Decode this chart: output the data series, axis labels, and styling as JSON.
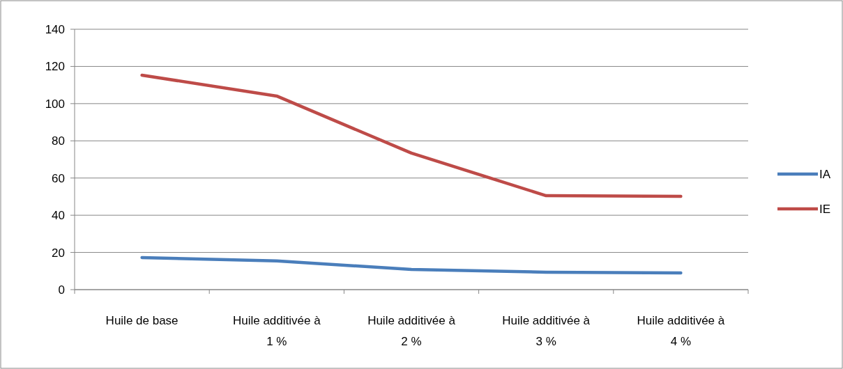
{
  "chart_data": {
    "type": "line",
    "categories": [
      "Huile de base",
      "Huile additivée à 1 %",
      "Huile additivée à 2 %",
      "Huile additivée à 3 %",
      "Huile additivée à 4 %"
    ],
    "series": [
      {
        "name": "IA",
        "color": "#4a7ebb",
        "values": [
          17.2,
          15.4,
          10.9,
          9.4,
          9
        ]
      },
      {
        "name": "IE",
        "color": "#be4b48",
        "values": [
          115.3,
          104.1,
          73.4,
          50.5,
          50.2
        ]
      }
    ],
    "ylim": [
      0,
      140
    ],
    "yticks": [
      0,
      20,
      40,
      60,
      80,
      100,
      120,
      140
    ],
    "grid": "y",
    "legend": "right",
    "marker": "none",
    "line_style": "solid"
  }
}
